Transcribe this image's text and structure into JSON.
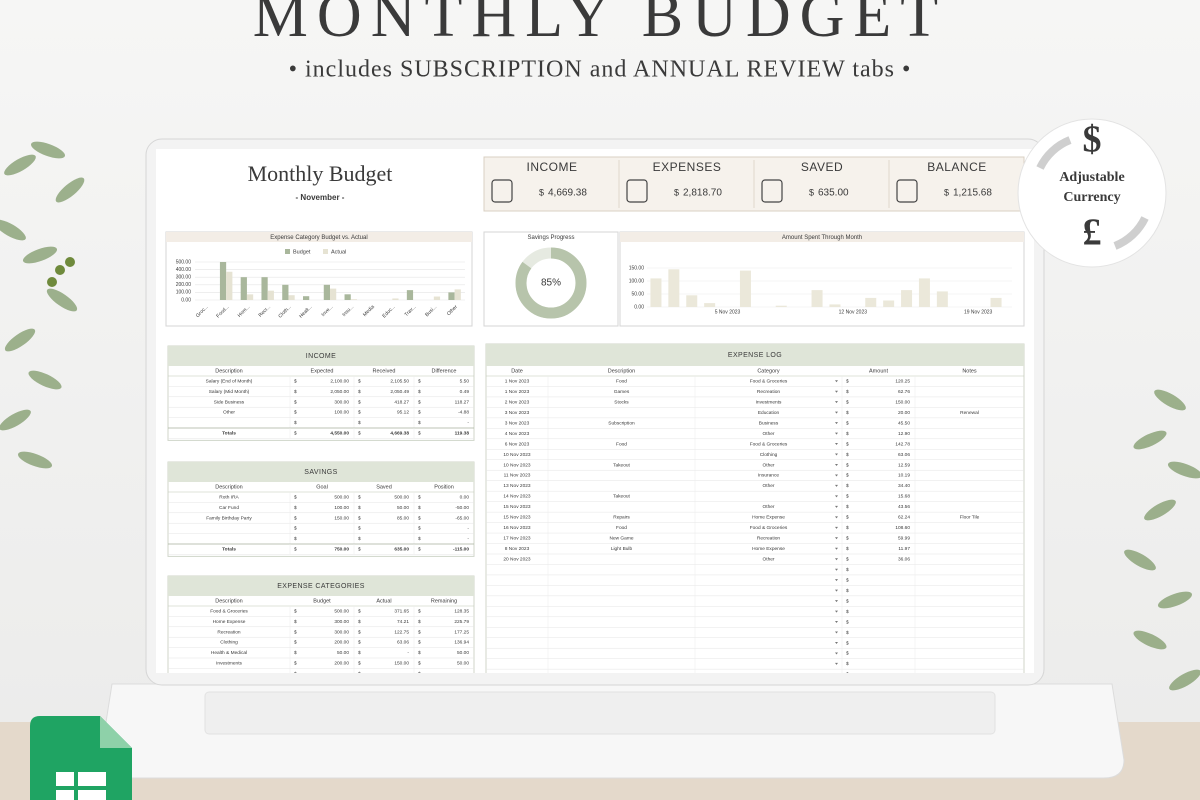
{
  "header": {
    "title": "MONTHLY BUDGET",
    "subtitle": "• includes SUBSCRIPTION and ANNUAL REVIEW tabs •"
  },
  "badge": {
    "line1": "Adjustable",
    "line2": "Currency",
    "symbols": [
      "$",
      "£"
    ]
  },
  "sheet": {
    "title": "Monthly Budget",
    "month": "- November -",
    "currency": "$",
    "summary": [
      {
        "label": "INCOME",
        "value": "4,669.38"
      },
      {
        "label": "EXPENSES",
        "value": "2,818.70"
      },
      {
        "label": "SAVED",
        "value": "635.00"
      },
      {
        "label": "BALANCE",
        "value": "1,215.68"
      }
    ],
    "charts": {
      "budget_vs_actual": {
        "type": "bar",
        "title": "Expense Category Budget vs. Actual",
        "categories": [
          "Groc...",
          "Food...",
          "Hom...",
          "Recr...",
          "Cloth...",
          "Healt...",
          "Inve...",
          "Insu...",
          "Media",
          "Educ...",
          "Trav...",
          "Busi...",
          "Other"
        ],
        "series": [
          {
            "name": "Budget",
            "color": "#a9b79c",
            "values": [
              0,
              500,
              300,
              300,
              200,
              50,
              200,
              75,
              0,
              0,
              130,
              0,
              100
            ]
          },
          {
            "name": "Actual",
            "color": "#e6e3d3",
            "values": [
              0,
              371.65,
              74.21,
              122.75,
              63.06,
              0,
              150,
              10.19,
              0,
              20,
              0,
              45.5,
              139.51
            ]
          }
        ],
        "ylim": [
          0,
          500
        ],
        "yticks": [
          {
            "value": 0,
            "label": "0.00"
          },
          {
            "value": 100,
            "label": "100.00"
          },
          {
            "value": 200,
            "label": "200.00"
          },
          {
            "value": 300,
            "label": "300.00"
          },
          {
            "value": 400,
            "label": "400.00"
          },
          {
            "value": 500,
            "label": "500.00"
          }
        ],
        "grid": true
      },
      "savings_progress": {
        "type": "donut",
        "title": "Savings Progress",
        "values": [
          85
        ],
        "value_labels": [
          "85%"
        ],
        "color": "#b7c4ab"
      },
      "spent_through_month": {
        "type": "bar",
        "title": "Amount Spent Through Month",
        "categories": [
          null,
          null,
          null,
          null,
          "5 Nov 2023",
          null,
          null,
          null,
          null,
          null,
          null,
          "12 Nov 2023",
          null,
          null,
          null,
          null,
          null,
          null,
          "19 Nov 2023",
          null
        ],
        "values": [
          110,
          145,
          45,
          15,
          0,
          140,
          0,
          5,
          0,
          65,
          10,
          0,
          35,
          25,
          65,
          110,
          60,
          0,
          0,
          35
        ],
        "color": "#ebe8da",
        "ylim": [
          0,
          150
        ],
        "yticks": [
          {
            "value": 0,
            "label": "0.00"
          },
          {
            "value": 50,
            "label": "50.00"
          },
          {
            "value": 100,
            "label": "100.00"
          },
          {
            "value": 150,
            "label": "150.00"
          }
        ],
        "grid": true
      }
    },
    "income": {
      "title": "INCOME",
      "columns": [
        "Description",
        "Expected",
        "Received",
        "Difference"
      ],
      "rows": [
        [
          "Salary (End of Month)",
          "2,100.00",
          "2,105.50",
          "5.50"
        ],
        [
          "Salary (Mid Month)",
          "2,050.00",
          "2,050.49",
          "0.49"
        ],
        [
          "Side Business",
          "300.00",
          "418.27",
          "118.27"
        ],
        [
          "Other",
          "100.00",
          "95.12",
          "-4.88"
        ],
        [
          null,
          null,
          null,
          "-"
        ]
      ],
      "totals": [
        "Totals",
        "4,550.00",
        "4,669.38",
        "119.38"
      ]
    },
    "savings": {
      "title": "SAVINGS",
      "columns": [
        "Description",
        "Goal",
        "Saved",
        "Position"
      ],
      "rows": [
        [
          "Roth IRA",
          "500.00",
          "500.00",
          "0.00"
        ],
        [
          "Car Fund",
          "100.00",
          "50.00",
          "-50.00"
        ],
        [
          "Family Birthday Party",
          "150.00",
          "85.00",
          "-65.00"
        ],
        [
          null,
          null,
          null,
          "-"
        ],
        [
          null,
          null,
          null,
          "-"
        ]
      ],
      "totals": [
        "Totals",
        "750.00",
        "635.00",
        "-115.00"
      ]
    },
    "expense_categories": {
      "title": "EXPENSE CATEGORIES",
      "columns": [
        "Description",
        "Budget",
        "Actual",
        "Remaining"
      ],
      "rows": [
        [
          "Food & Groceries",
          "500.00",
          "371.65",
          "128.35"
        ],
        [
          "Home Expense",
          "300.00",
          "74.21",
          "225.79"
        ],
        [
          "Recreation",
          "300.00",
          "122.75",
          "177.25"
        ],
        [
          "Clothing",
          "200.00",
          "63.06",
          "136.94"
        ],
        [
          "Health & Medical",
          "50.00",
          "-",
          "50.00"
        ],
        [
          "Investments",
          "200.00",
          "150.00",
          "50.00"
        ]
      ]
    },
    "expense_log": {
      "title": "EXPENSE LOG",
      "columns": [
        "Date",
        "Description",
        "Category",
        "Amount",
        "Notes"
      ],
      "rows": [
        [
          "1 Nov 2023",
          "Food",
          "Food & Groceries",
          "120.25",
          null
        ],
        [
          "1 Nov 2023",
          "Games",
          "Recreation",
          "62.76",
          null
        ],
        [
          "2 Nov 2023",
          "Stocks",
          "Investments",
          "150.00",
          null
        ],
        [
          "3 Nov 2023",
          null,
          "Education",
          "20.00",
          "Renewal"
        ],
        [
          "3 Nov 2023",
          "Subscription",
          "Business",
          "45.50",
          null
        ],
        [
          "4 Nov 2023",
          null,
          "Other",
          "12.90",
          null
        ],
        [
          "6 Nov 2023",
          "Food",
          "Food & Groceries",
          "142.78",
          null
        ],
        [
          "10 Nov 2023",
          null,
          "Clothing",
          "63.06",
          null
        ],
        [
          "10 Nov 2023",
          "Takeout",
          "Other",
          "12.59",
          null
        ],
        [
          "11 Nov 2023",
          null,
          "Insurance",
          "10.19",
          null
        ],
        [
          "13 Nov 2023",
          null,
          "Other",
          "34.40",
          null
        ],
        [
          "14 Nov 2023",
          "Takeout",
          null,
          "15.68",
          null
        ],
        [
          "15 Nov 2023",
          null,
          "Other",
          "43.56",
          null
        ],
        [
          "15 Nov 2023",
          "Repairs",
          "Home Expense",
          "62.24",
          "Floor Tile"
        ],
        [
          "16 Nov 2023",
          "Food",
          "Food & Groceries",
          "108.60",
          null
        ],
        [
          "17 Nov 2023",
          "New Game",
          "Recreation",
          "59.99",
          null
        ],
        [
          "8 Nov 2023",
          "Light Bulb",
          "Home Expense",
          "11.97",
          null
        ],
        [
          "20 Nov 2023",
          null,
          "Other",
          "36.06",
          null
        ]
      ]
    }
  }
}
